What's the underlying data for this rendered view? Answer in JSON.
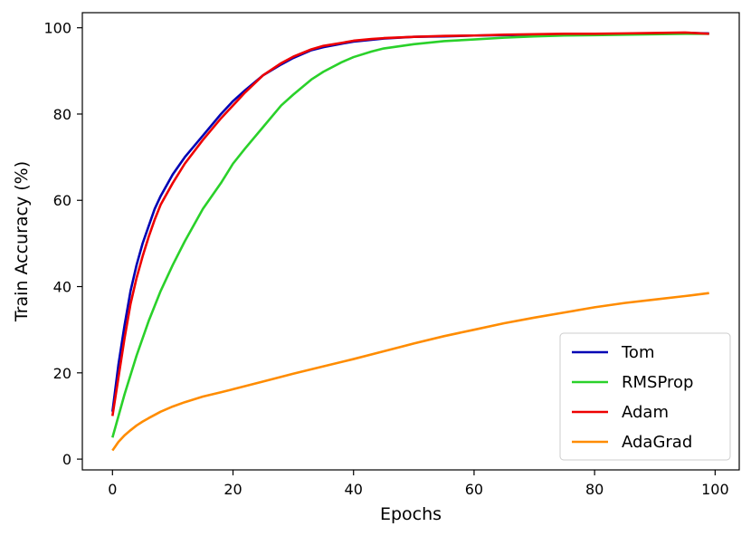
{
  "chart_data": {
    "type": "line",
    "xlabel": "Epochs",
    "ylabel": "Train Accuracy (%)",
    "xlim": [
      -5,
      104
    ],
    "ylim": [
      -2.5,
      103.5
    ],
    "xticks": [
      0,
      20,
      40,
      60,
      80,
      100
    ],
    "yticks": [
      0,
      20,
      40,
      60,
      80,
      100
    ],
    "grid": false,
    "legend_position": "bottom-right",
    "series": [
      {
        "name": "Tom",
        "color": "#0000b4",
        "x": [
          0,
          1,
          2,
          3,
          4,
          5,
          6,
          7,
          8,
          10,
          12,
          15,
          18,
          20,
          22,
          25,
          28,
          30,
          33,
          35,
          38,
          40,
          43,
          45,
          50,
          55,
          60,
          65,
          70,
          75,
          80,
          85,
          90,
          95,
          99
        ],
        "y": [
          11,
          22,
          31,
          39,
          45,
          50,
          54,
          58,
          61,
          66,
          70,
          75,
          80,
          83,
          85.5,
          89,
          91.5,
          93,
          94.8,
          95.5,
          96.3,
          96.8,
          97.2,
          97.5,
          97.9,
          98.0,
          98.2,
          98.3,
          98.4,
          98.5,
          98.6,
          98.5,
          98.7,
          98.8,
          98.7
        ]
      },
      {
        "name": "RMSProp",
        "color": "#2ad12a",
        "x": [
          0,
          2,
          4,
          6,
          8,
          10,
          12,
          15,
          18,
          20,
          22,
          25,
          28,
          30,
          33,
          35,
          38,
          40,
          43,
          45,
          50,
          55,
          60,
          65,
          70,
          75,
          80,
          85,
          90,
          95,
          99
        ],
        "y": [
          5,
          15,
          24,
          32,
          39,
          45,
          50.5,
          58,
          64,
          68.5,
          72,
          77,
          82,
          84.5,
          88,
          89.8,
          92,
          93.2,
          94.5,
          95.2,
          96.2,
          96.9,
          97.3,
          97.7,
          98.0,
          98.2,
          98.3,
          98.4,
          98.5,
          98.6,
          98.6
        ]
      },
      {
        "name": "Adam",
        "color": "#ee0000",
        "x": [
          0,
          1,
          2,
          3,
          4,
          5,
          6,
          7,
          8,
          10,
          12,
          15,
          18,
          20,
          22,
          25,
          28,
          30,
          33,
          35,
          38,
          40,
          43,
          45,
          50,
          55,
          60,
          65,
          70,
          75,
          80,
          85,
          90,
          95,
          99
        ],
        "y": [
          10,
          19,
          28,
          36,
          42,
          47,
          51.5,
          55.5,
          59,
          64,
          68.5,
          74,
          79,
          82,
          85,
          89,
          91.8,
          93.3,
          95,
          95.8,
          96.5,
          97,
          97.4,
          97.6,
          97.9,
          98.1,
          98.2,
          98.4,
          98.5,
          98.6,
          98.6,
          98.7,
          98.8,
          98.9,
          98.6
        ]
      },
      {
        "name": "AdaGrad",
        "color": "#ff8c00",
        "x": [
          0,
          1,
          2,
          3,
          4,
          5,
          6,
          8,
          10,
          12,
          15,
          18,
          20,
          25,
          30,
          35,
          40,
          45,
          50,
          55,
          60,
          65,
          70,
          75,
          80,
          85,
          90,
          95,
          99
        ],
        "y": [
          2,
          4,
          5.5,
          6.7,
          7.8,
          8.7,
          9.5,
          11,
          12.2,
          13.2,
          14.5,
          15.5,
          16.2,
          18,
          19.8,
          21.5,
          23.2,
          25,
          26.8,
          28.5,
          30,
          31.5,
          32.8,
          34,
          35.2,
          36.2,
          37,
          37.8,
          38.5
        ]
      }
    ]
  }
}
